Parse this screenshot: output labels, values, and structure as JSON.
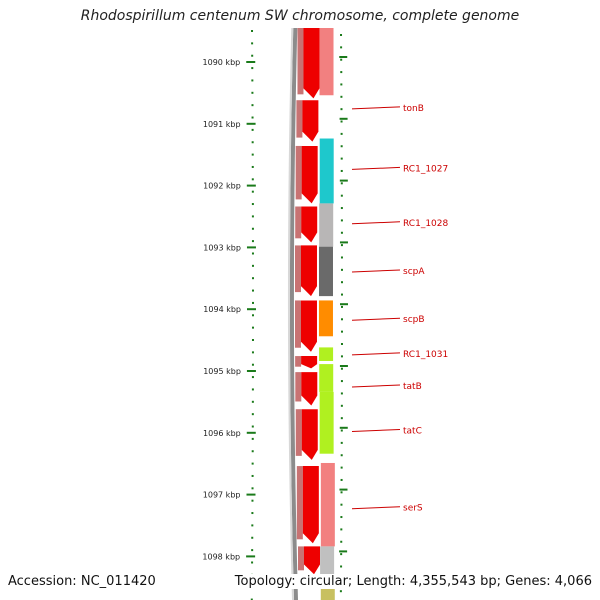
{
  "title": "Rhodospirillum centenum SW chromosome, complete genome",
  "footer": {
    "accession_label": "Accession:",
    "accession": "NC_011420",
    "topology_label": "Topology:",
    "topology": "circular",
    "length_label": "Length:",
    "length": "4,355,543 bp",
    "genes_label": "Genes:",
    "genes": "4,066"
  },
  "colors": {
    "backbone": "#8c8c8c",
    "cds": "#ee0000",
    "cds_shadow": "#9a0000",
    "tick": "#1a7a1a",
    "label": "#cc0000",
    "label_line": "#cc0000"
  },
  "scale": {
    "unit": "kbp",
    "ticks": [
      {
        "position_kbp": 1090,
        "label": "1090 kbp"
      },
      {
        "position_kbp": 1091,
        "label": "1091 kbp"
      },
      {
        "position_kbp": 1092,
        "label": "1092 kbp"
      },
      {
        "position_kbp": 1093,
        "label": "1093 kbp"
      },
      {
        "position_kbp": 1094,
        "label": "1094 kbp"
      },
      {
        "position_kbp": 1095,
        "label": "1095 kbp"
      },
      {
        "position_kbp": 1096,
        "label": "1096 kbp"
      },
      {
        "position_kbp": 1097,
        "label": "1097 kbp"
      },
      {
        "position_kbp": 1098,
        "label": "1098 kbp"
      }
    ]
  },
  "cds_features": [
    {
      "start_kbp": 1089.55,
      "end_kbp": 1090.75
    },
    {
      "start_kbp": 1090.78,
      "end_kbp": 1091.45
    },
    {
      "start_kbp": 1091.52,
      "end_kbp": 1092.45
    },
    {
      "start_kbp": 1092.5,
      "end_kbp": 1093.08
    },
    {
      "start_kbp": 1093.13,
      "end_kbp": 1093.95
    },
    {
      "start_kbp": 1094.02,
      "end_kbp": 1094.85
    },
    {
      "start_kbp": 1094.92,
      "end_kbp": 1095.12
    },
    {
      "start_kbp": 1095.18,
      "end_kbp": 1095.72
    },
    {
      "start_kbp": 1095.78,
      "end_kbp": 1096.6
    },
    {
      "start_kbp": 1096.7,
      "end_kbp": 1097.95
    },
    {
      "start_kbp": 1098.0,
      "end_kbp": 1098.45
    }
  ],
  "genes": [
    {
      "label": "tonB",
      "start_kbp": 1090.78,
      "end_kbp": 1091.45,
      "color": null,
      "label_at_kbp": 1090.92
    },
    {
      "label": "RC1_1027",
      "start_kbp": 1091.4,
      "end_kbp": 1092.45,
      "color": "#1ec8cc",
      "label_at_kbp": 1091.9
    },
    {
      "label": "RC1_1028",
      "start_kbp": 1092.45,
      "end_kbp": 1093.15,
      "color": "#b8b6b6",
      "label_at_kbp": 1092.78
    },
    {
      "label": "scpA",
      "start_kbp": 1093.15,
      "end_kbp": 1093.95,
      "color": "#6a6a6a",
      "label_at_kbp": 1093.56
    },
    {
      "label": "scpB",
      "start_kbp": 1094.02,
      "end_kbp": 1094.6,
      "color": "#ff8c00",
      "label_at_kbp": 1094.34
    },
    {
      "label": "RC1_1031",
      "start_kbp": 1094.78,
      "end_kbp": 1095.0,
      "color": "#b0f020",
      "label_at_kbp": 1094.9
    },
    {
      "label": "tatB",
      "start_kbp": 1095.05,
      "end_kbp": 1095.5,
      "color": "#b0f020",
      "label_at_kbp": 1095.42
    },
    {
      "label": "tatC",
      "start_kbp": 1095.5,
      "end_kbp": 1096.5,
      "color": "#b0f020",
      "label_at_kbp": 1096.14
    },
    {
      "label": "serS",
      "start_kbp": 1096.65,
      "end_kbp": 1098.0,
      "color": "#f28080",
      "label_at_kbp": 1097.39
    }
  ],
  "extra_features": [
    {
      "start_kbp": 1089.55,
      "end_kbp": 1090.7,
      "color": "#f28080"
    },
    {
      "start_kbp": 1098.0,
      "end_kbp": 1098.6,
      "color": "#c0c0c0"
    },
    {
      "start_kbp": 1098.6,
      "end_kbp": 1098.9,
      "color": "#c8c060"
    }
  ]
}
